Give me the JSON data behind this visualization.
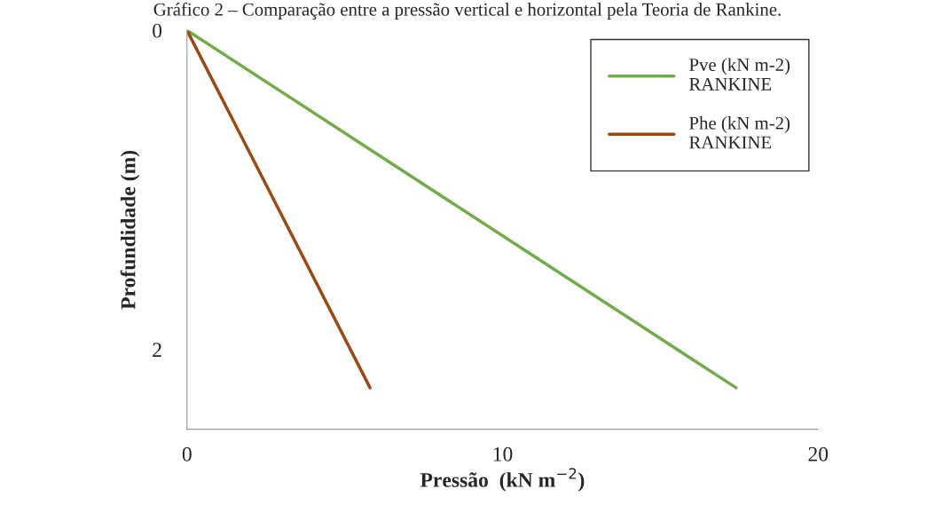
{
  "chart_data": {
    "type": "line",
    "title": "Gráfico 2 – Comparação entre a pressão vertical e horizontal pela Teoria de Rankine.",
    "xlabel": "Pressão  (kN m$^{−2}$)",
    "ylabel": "Profundidade (m)",
    "series": [
      {
        "name": "Pve (kN m-2)\nRANKINE",
        "color": "#70ad47",
        "x": [
          0,
          17.4
        ],
        "values": [
          0,
          2.24
        ]
      },
      {
        "name": "Phe (kN m-2)\nRANKINE",
        "color": "#9e480e",
        "x": [
          0,
          5.8
        ],
        "values": [
          0,
          2.24
        ]
      }
    ],
    "xlim": [
      0,
      20
    ],
    "xticks": [
      0,
      10,
      20
    ],
    "ylim": [
      2.5,
      0
    ],
    "yticks": [
      0,
      2
    ],
    "grid": false,
    "legend": "top right",
    "marker": "none",
    "line_style": "solid"
  }
}
